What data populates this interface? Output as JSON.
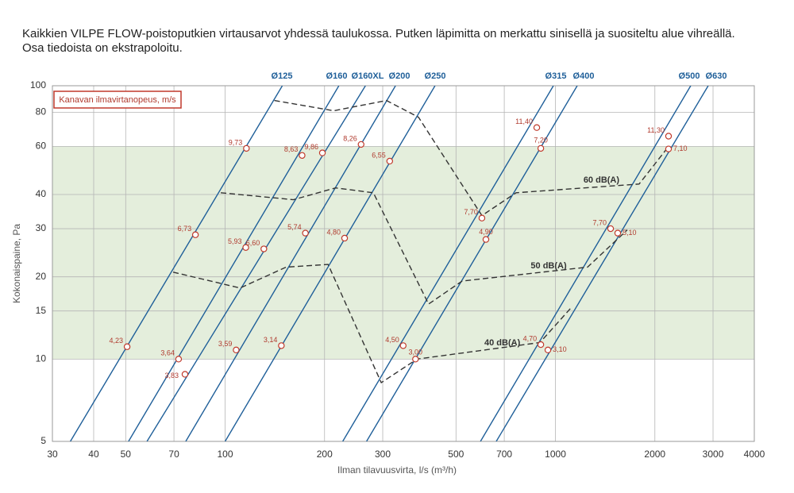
{
  "chart_data": {
    "type": "line",
    "title": "Kaikkien VILPE FLOW-poistoputkien virtausarvot yhdessä taulukossa. Putken läpimitta on merkattu sinisellä ja suositeltu alue vihreällä. Osa tiedoista on ekstrapoloitu.",
    "x_label": "Ilman tilavuusvirta, l/s (m³/h)",
    "y_label": "Kokonaispaine, Pa",
    "legend_box": "Kanavan ilmavirtanopeus, m/s",
    "log_x": true,
    "log_y": true,
    "grid": true,
    "xlim": [
      30,
      4000
    ],
    "ylim": [
      5,
      100
    ],
    "xticks": [
      30,
      40,
      50,
      70,
      100,
      200,
      300,
      500,
      700,
      1000,
      2000,
      3000,
      4000
    ],
    "yticks": [
      5,
      10,
      15,
      20,
      30,
      40,
      60,
      80,
      100
    ],
    "recommended_band": {
      "ylim": [
        10,
        60
      ],
      "color": "#e4eedc"
    },
    "series": [
      {
        "name": "Ø125",
        "color": "#1f5f99",
        "x": [
          34,
          149
        ],
        "y": [
          5,
          100
        ]
      },
      {
        "name": "Ø160",
        "color": "#1f5f99",
        "x": [
          51,
          221
        ],
        "y": [
          5,
          100
        ]
      },
      {
        "name": "Ø160XL",
        "color": "#1f5f99",
        "x": [
          58,
          266
        ],
        "y": [
          5,
          100
        ]
      },
      {
        "name": "Ø200",
        "color": "#1f5f99",
        "x": [
          76,
          328
        ],
        "y": [
          5,
          100
        ]
      },
      {
        "name": "Ø250",
        "color": "#1f5f99",
        "x": [
          100,
          432
        ],
        "y": [
          5,
          100
        ]
      },
      {
        "name": "Ø315",
        "color": "#1f5f99",
        "x": [
          227,
          986
        ],
        "y": [
          5,
          100
        ]
      },
      {
        "name": "Ø400",
        "color": "#1f5f99",
        "x": [
          268,
          1164
        ],
        "y": [
          5,
          100
        ]
      },
      {
        "name": "Ø500",
        "color": "#1f5f99",
        "x": [
          593,
          2568
        ],
        "y": [
          5,
          100
        ]
      },
      {
        "name": "Ø630",
        "color": "#1f5f99",
        "x": [
          662,
          2901
        ],
        "y": [
          5,
          100
        ]
      }
    ],
    "noise_curves": [
      {
        "name": "60 dB(A)",
        "color": "#333333",
        "x": [
          141,
          213,
          308,
          385,
          599,
          760,
          1792,
          2200
        ],
        "y": [
          88.3,
          81,
          88.3,
          76.7,
          33.5,
          40.6,
          43.7,
          59.9
        ]
      },
      {
        "name": "50 dB(A)",
        "color": "#333333",
        "x": [
          97,
          161,
          216,
          281,
          413,
          522,
          1251,
          1650
        ],
        "y": [
          40.6,
          38.3,
          42.3,
          40.6,
          15.9,
          19.3,
          21.7,
          29.7
        ]
      },
      {
        "name": "40 dB(A)",
        "color": "#333333",
        "x": [
          69.6,
          111,
          153,
          205,
          297,
          381,
          898,
          1120
        ],
        "y": [
          20.8,
          18.2,
          21.7,
          22.2,
          8.2,
          10,
          11.5,
          15.5
        ]
      }
    ],
    "points_color": "#c0392b",
    "points": [
      {
        "x": 50.5,
        "y": 11.1,
        "label": "4,23"
      },
      {
        "x": 72.3,
        "y": 10.0,
        "label": "3,64"
      },
      {
        "x": 75.6,
        "y": 8.8,
        "label": "3,83"
      },
      {
        "x": 81.3,
        "y": 28.5,
        "label": "6,73"
      },
      {
        "x": 116,
        "y": 59,
        "label": "9,73"
      },
      {
        "x": 115.5,
        "y": 25.6,
        "label": "5,93"
      },
      {
        "x": 131,
        "y": 25.3,
        "label": "6,60"
      },
      {
        "x": 108,
        "y": 10.8,
        "label": "3,59"
      },
      {
        "x": 171,
        "y": 55.6,
        "label": "8,63"
      },
      {
        "x": 197,
        "y": 56.8,
        "label": "9,86"
      },
      {
        "x": 175,
        "y": 28.9,
        "label": "5,74"
      },
      {
        "x": 148,
        "y": 11.2,
        "label": "3,14"
      },
      {
        "x": 258,
        "y": 61,
        "label": "8,26"
      },
      {
        "x": 315,
        "y": 53,
        "label": "6,55"
      },
      {
        "x": 230,
        "y": 27.7,
        "label": "4,80"
      },
      {
        "x": 346,
        "y": 11.2,
        "label": "4,50"
      },
      {
        "x": 377,
        "y": 10.0,
        "label": "3,00"
      },
      {
        "x": 599,
        "y": 32.8,
        "label": "7,70"
      },
      {
        "x": 616,
        "y": 27.4,
        "label": "4,90"
      },
      {
        "x": 878,
        "y": 70.3,
        "label": "11,40"
      },
      {
        "x": 903,
        "y": 59,
        "label": "7,20"
      },
      {
        "x": 903,
        "y": 11.3,
        "label": "4,70"
      },
      {
        "x": 949,
        "y": 10.8,
        "label": "3,10"
      },
      {
        "x": 1469,
        "y": 30,
        "label": "7,70"
      },
      {
        "x": 1544,
        "y": 28.9,
        "label": "5,10"
      },
      {
        "x": 2200,
        "y": 65.4,
        "label": "11,30"
      },
      {
        "x": 2200,
        "y": 58.7,
        "label": "7,10"
      }
    ]
  }
}
